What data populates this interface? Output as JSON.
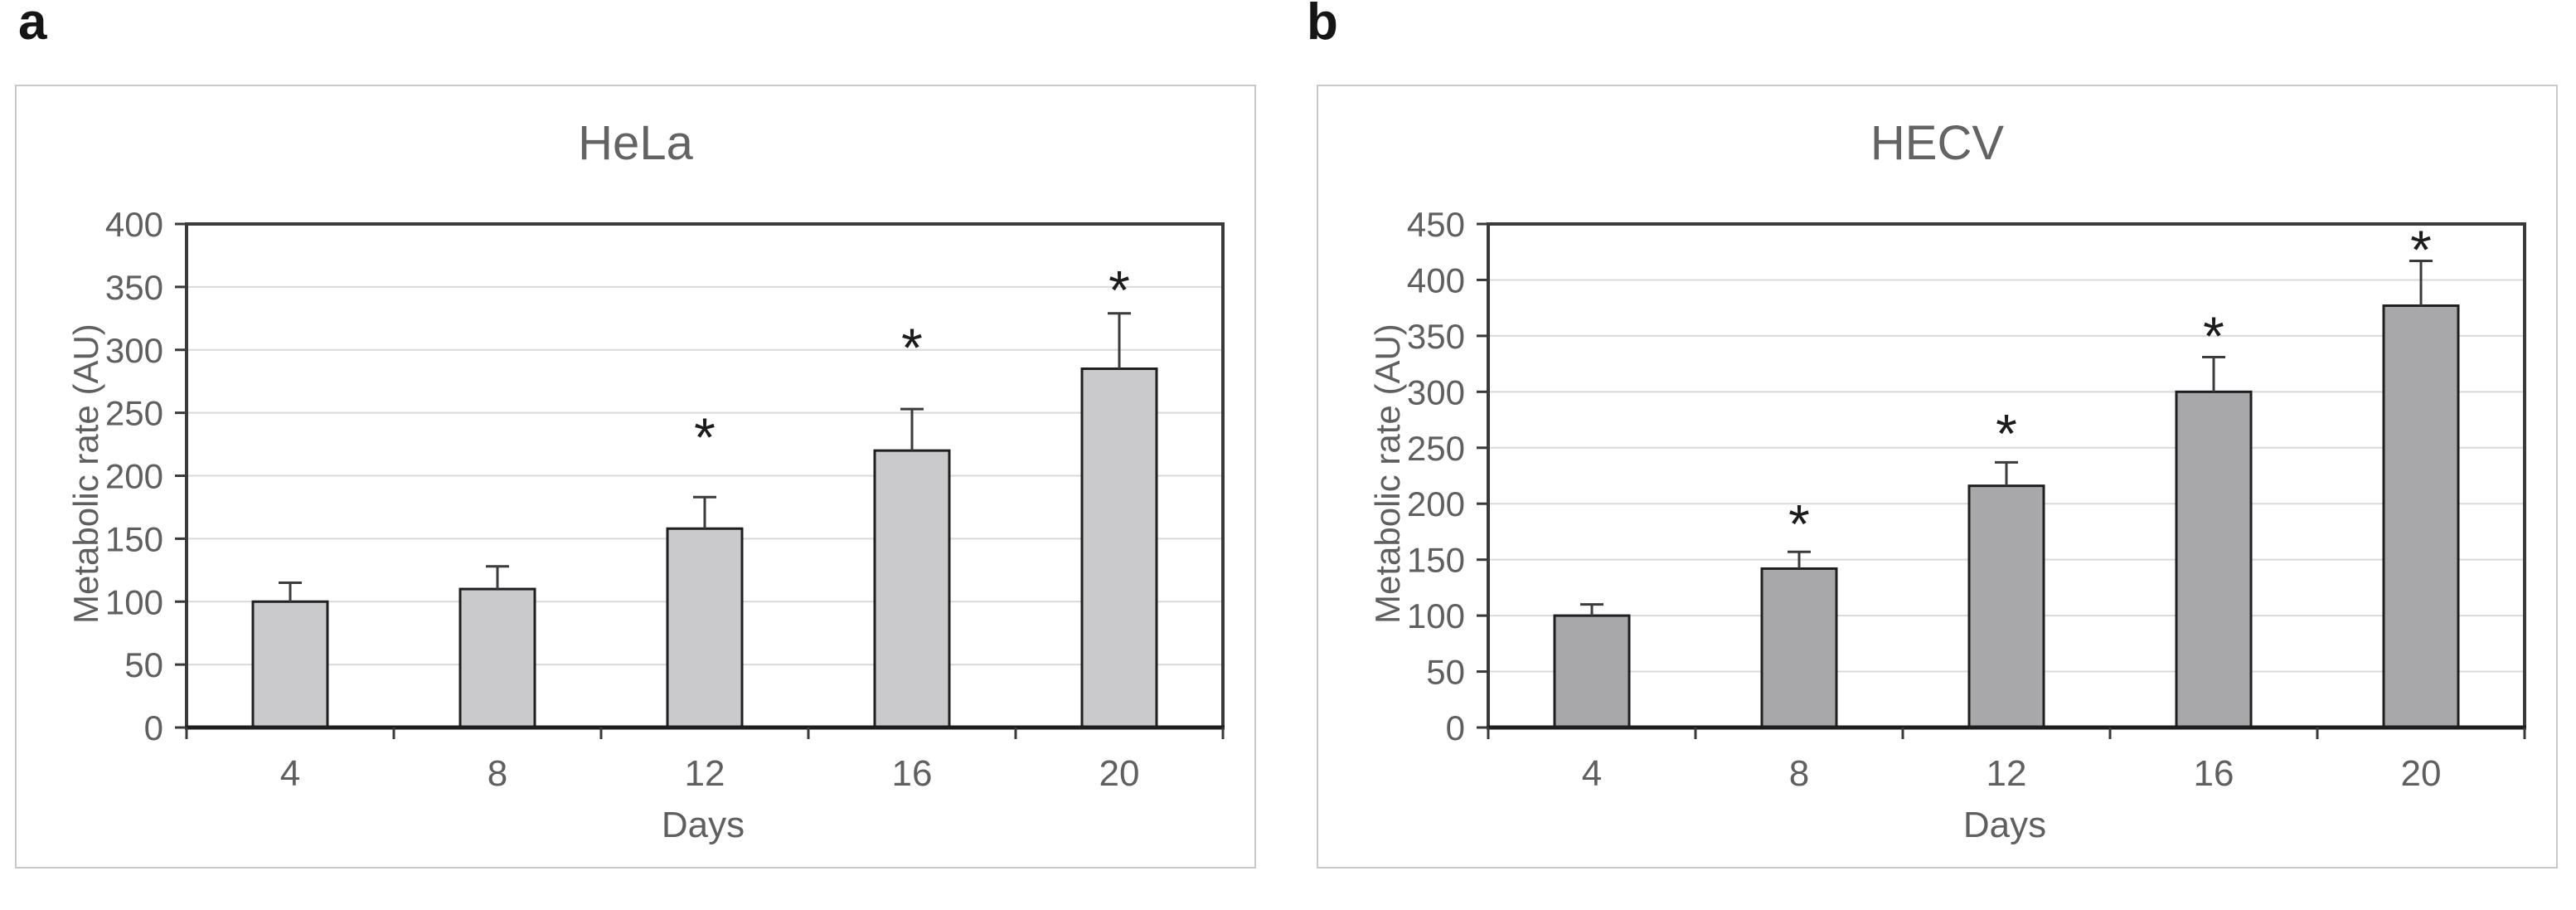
{
  "figure": {
    "panel_labels": [
      "a",
      "b"
    ],
    "background_color": "#ffffff",
    "panel_border_color": "#c9c9c9"
  },
  "style": {
    "gridline_color": "#d9d9d9",
    "frame_color": "#3a3a3a",
    "baseline_color": "#1e1e1e",
    "tick_color": "#3a3a3a",
    "error_bar_color": "#3b3b3b",
    "text_color": "#5f5f5f",
    "title_color": "#636363",
    "asterisk_color": "#1c1c1c"
  },
  "chart_data": [
    {
      "type": "bar",
      "panel_label": "a",
      "title": "HeLa",
      "xlabel": "Days",
      "ylabel": "Metabolic rate (AU)",
      "categories": [
        "4",
        "8",
        "12",
        "16",
        "20"
      ],
      "values": [
        100,
        110,
        158,
        220,
        285
      ],
      "errors_plus": [
        15,
        18,
        25,
        33,
        44
      ],
      "significance_marker": "*",
      "significance_y": [
        null,
        null,
        238,
        309,
        355
      ],
      "ylim": [
        0,
        400
      ],
      "ytick_step": 50,
      "ytick_labels": [
        "0",
        "50",
        "100",
        "150",
        "200",
        "250",
        "300",
        "350",
        "400"
      ],
      "grid": true,
      "legend": null,
      "bar_fill": "#cacacc",
      "bar_stroke": "#1f1f1f"
    },
    {
      "type": "bar",
      "panel_label": "b",
      "title": "HECV",
      "xlabel": "Days",
      "ylabel": "Metabolic rate (AU)",
      "categories": [
        "4",
        "8",
        "12",
        "16",
        "20"
      ],
      "values": [
        100,
        142,
        216,
        300,
        377
      ],
      "errors_plus": [
        10,
        15,
        21,
        31,
        40
      ],
      "significance_marker": "*",
      "significance_y": [
        null,
        190,
        271,
        358,
        435
      ],
      "ylim": [
        0,
        450
      ],
      "ytick_step": 50,
      "ytick_labels": [
        "0",
        "50",
        "100",
        "150",
        "200",
        "250",
        "300",
        "350",
        "400",
        "450"
      ],
      "grid": true,
      "legend": null,
      "bar_fill": "#a8a8aa",
      "bar_stroke": "#1f1f1f"
    }
  ]
}
